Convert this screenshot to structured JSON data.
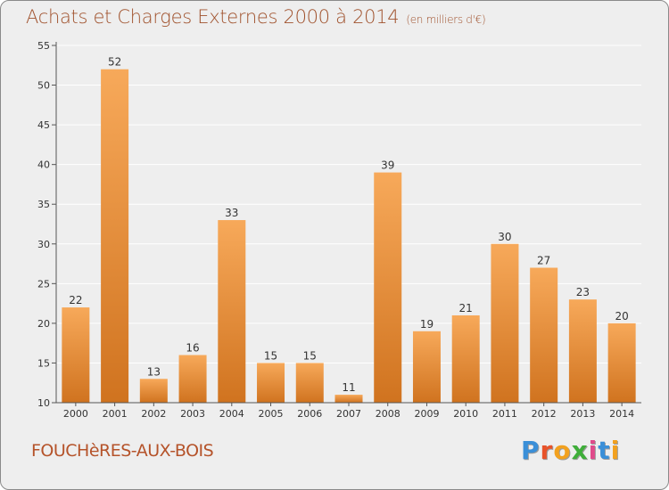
{
  "title": "Achats et Charges Externes 2000 à 2014",
  "subtitle": "(en milliers d'€)",
  "town": "FOUCHèRES-AUX-BOIS",
  "logo": {
    "text": "Proxiti",
    "letters": [
      {
        "ch": "P",
        "color": "#3a8fd8"
      },
      {
        "ch": "r",
        "color": "#e8532a"
      },
      {
        "ch": "o",
        "color": "#f2a11f"
      },
      {
        "ch": "x",
        "color": "#3fae3a"
      },
      {
        "ch": "i",
        "color": "#e04a8a"
      },
      {
        "ch": "t",
        "color": "#3a8fd8"
      },
      {
        "ch": "i",
        "color": "#f2a11f"
      }
    ]
  },
  "colors": {
    "bar_light": "#f7a95a",
    "bar_dark": "#d0731f",
    "axis": "#555555",
    "grid": "#ffffff",
    "text": "#333333",
    "title": "#a0522d"
  },
  "chart_data": {
    "type": "bar",
    "categories": [
      "2000",
      "2001",
      "2002",
      "2003",
      "2004",
      "2005",
      "2006",
      "2007",
      "2008",
      "2009",
      "2010",
      "2011",
      "2012",
      "2013",
      "2014"
    ],
    "values": [
      22,
      52,
      13,
      16,
      33,
      15,
      15,
      11,
      39,
      19,
      21,
      30,
      27,
      23,
      20
    ],
    "ylim": [
      10,
      55
    ],
    "yticks": [
      10,
      15,
      20,
      25,
      30,
      35,
      40,
      45,
      50,
      55
    ],
    "grid": true,
    "title": "Achats et Charges Externes 2000 à 2014",
    "subtitle": "(en milliers d'€)"
  }
}
